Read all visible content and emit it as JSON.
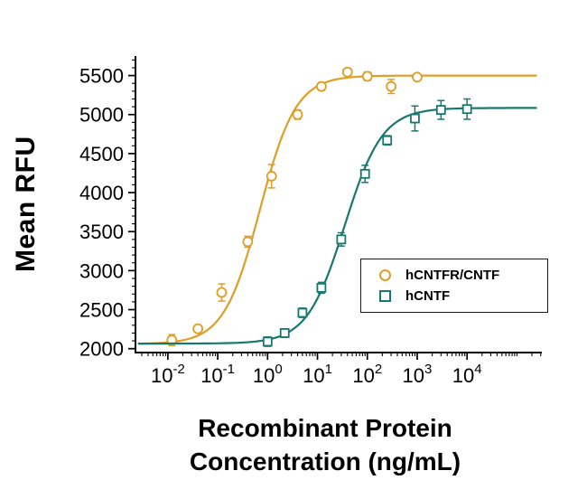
{
  "chart_data": {
    "type": "scatter",
    "title": "",
    "ylabel": "Mean RFU",
    "xlabel_line1": "Recombinant Protein",
    "xlabel_line2": "Concentration (ng/mL)",
    "x_scale": "log",
    "x_tick_base": "10",
    "x_ticks_exponents": [
      -2,
      -1,
      0,
      1,
      2,
      3,
      4
    ],
    "y_ticks": [
      2000,
      2500,
      3000,
      3500,
      4000,
      4500,
      5000,
      5500
    ],
    "xlim_log": [
      -2.65,
      5.5
    ],
    "ylim": [
      1950,
      5750
    ],
    "grid": false,
    "legend_position": "middle-right",
    "curve_range_log": [
      -2.6,
      5.4
    ],
    "series": [
      {
        "name": "hCNTFR/CNTF",
        "marker": "circle",
        "color": "#DF9E26",
        "points": [
          [
            0.012,
            2110,
            70
          ],
          [
            0.04,
            2255,
            40
          ],
          [
            0.12,
            2720,
            110
          ],
          [
            0.4,
            3370,
            70
          ],
          [
            1.2,
            4210,
            150
          ],
          [
            4,
            5000,
            60
          ],
          [
            12,
            5360,
            50
          ],
          [
            40,
            5545,
            45
          ],
          [
            100,
            5490,
            55
          ],
          [
            300,
            5360,
            90
          ],
          [
            1000,
            5480,
            40
          ]
        ],
        "fit": {
          "bottom": 2060,
          "top": 5500,
          "ec50": 0.7,
          "hill": 1.2
        }
      },
      {
        "name": "hCNTF",
        "marker": "square",
        "color": "#18786F",
        "points": [
          [
            1,
            2090,
            60
          ],
          [
            2.2,
            2200,
            55
          ],
          [
            5,
            2460,
            60
          ],
          [
            12,
            2780,
            70
          ],
          [
            30,
            3400,
            85
          ],
          [
            90,
            4240,
            110
          ],
          [
            250,
            4670,
            60
          ],
          [
            900,
            4950,
            160
          ],
          [
            3000,
            5060,
            120
          ],
          [
            10000,
            5070,
            130
          ]
        ],
        "fit": {
          "bottom": 2065,
          "top": 5085,
          "ec50": 35,
          "hill": 1.15
        }
      }
    ]
  }
}
